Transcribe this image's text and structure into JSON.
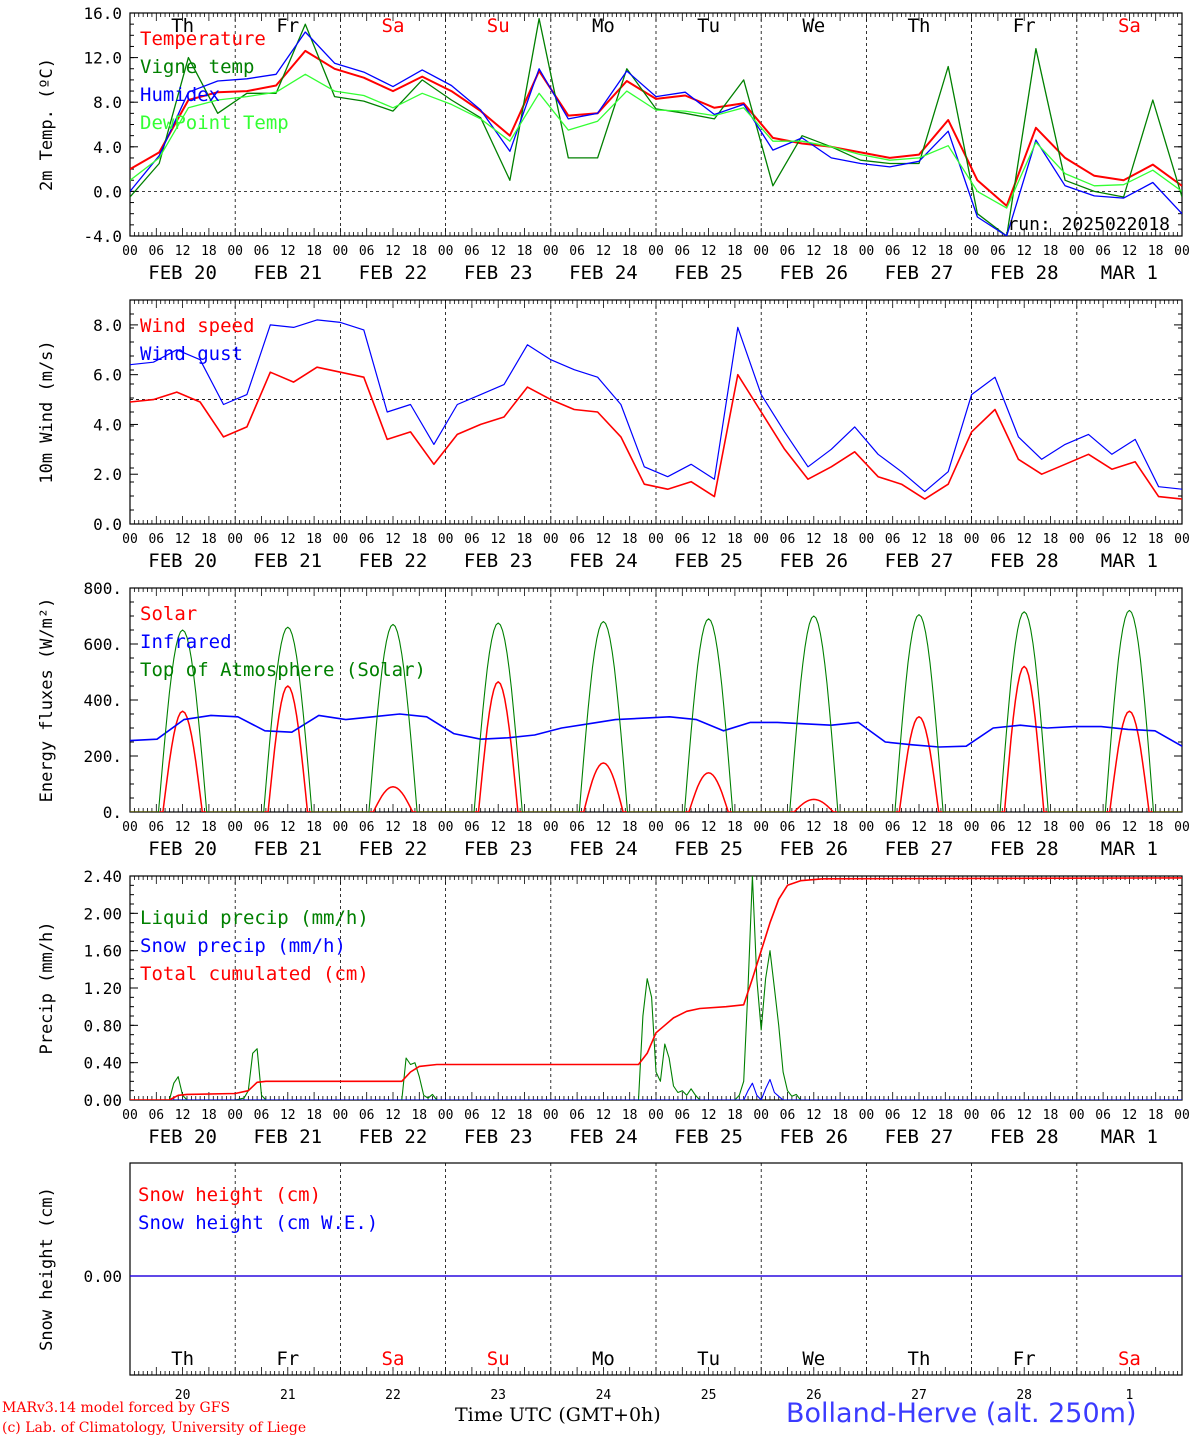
{
  "footer": {
    "credit_line1": "MARv3.14 model forced by GFS",
    "credit_line2": "(c) Lab. of Climatology, University of Liege",
    "x_title": "Time UTC (GMT+0h)",
    "station": "Bolland-Herve (alt. 250m)"
  },
  "colors": {
    "red": "#ff0000",
    "green": "#008000",
    "blue": "#0000ff",
    "lightgreen": "#33ff33",
    "axis": "#000000"
  },
  "chart_data": [
    {
      "type": "line",
      "title": "",
      "ylabel": "2m Temp. (ºC)",
      "ylim": [
        -4,
        16
      ],
      "yticks": [
        "-4.0",
        "0.0",
        "4.0",
        "8.0",
        "12.0",
        "16.0"
      ],
      "reference_line": 0,
      "annotation": "run: 2025022018",
      "day_labels": [
        {
          "text": "Th",
          "color": "#000000"
        },
        {
          "text": "Fr",
          "color": "#000000"
        },
        {
          "text": "Sa",
          "color": "#ff0000"
        },
        {
          "text": "Su",
          "color": "#ff0000"
        },
        {
          "text": "Mo",
          "color": "#000000"
        },
        {
          "text": "Tu",
          "color": "#000000"
        },
        {
          "text": "We",
          "color": "#000000"
        },
        {
          "text": "Th",
          "color": "#000000"
        },
        {
          "text": "Fr",
          "color": "#000000"
        },
        {
          "text": "Sa",
          "color": "#ff0000"
        }
      ],
      "x_hours": [
        0,
        6,
        12,
        18,
        24,
        30,
        36,
        42,
        48,
        54,
        60,
        66,
        72,
        78,
        84,
        90,
        96,
        102,
        108,
        114,
        120,
        126,
        132,
        138,
        144,
        150,
        156,
        162,
        168,
        174,
        180,
        186,
        192,
        198,
        204,
        210,
        216,
        222,
        228,
        234,
        240
      ],
      "series": [
        {
          "name": "Temperature",
          "color": "#ff0000",
          "width": 2,
          "values": [
            2.0,
            3.5,
            8.2,
            8.9,
            9.0,
            9.5,
            12.6,
            11.0,
            10.2,
            9.0,
            10.3,
            9.0,
            7.2,
            5.0,
            10.8,
            6.8,
            7.0,
            9.9,
            8.3,
            8.6,
            7.5,
            7.9,
            4.8,
            4.3,
            4.0,
            3.5,
            3.0,
            3.3,
            6.4,
            1.0,
            -1.3,
            5.7,
            3.0,
            1.4,
            1.0,
            2.4,
            0.5
          ]
        },
        {
          "name": "Vigne temp",
          "color": "#008000",
          "width": 1.3,
          "values": [
            -0.5,
            2.5,
            12.0,
            7.0,
            8.8,
            8.8,
            15.0,
            8.5,
            8.1,
            7.2,
            10.0,
            8.2,
            6.6,
            1.0,
            15.5,
            3.0,
            3.0,
            11.0,
            7.4,
            7.0,
            6.5,
            10.0,
            0.5,
            5.0,
            4.0,
            2.8,
            2.5,
            2.5,
            11.2,
            -2.0,
            -4.0,
            12.8,
            1.0,
            0.0,
            -0.5,
            8.2,
            -0.5
          ]
        },
        {
          "name": "Humidex",
          "color": "#0000ff",
          "width": 1.3,
          "values": [
            0.0,
            3.2,
            8.9,
            9.9,
            10.1,
            10.5,
            14.3,
            11.5,
            10.7,
            9.4,
            10.9,
            9.5,
            7.3,
            3.6,
            11.0,
            6.5,
            7.0,
            10.8,
            8.5,
            8.9,
            6.9,
            7.8,
            3.7,
            4.8,
            3.0,
            2.5,
            2.2,
            2.7,
            5.4,
            -2.3,
            -4.0,
            4.6,
            0.5,
            -0.4,
            -0.6,
            0.8,
            -2.0
          ]
        },
        {
          "name": "DewPoint Temp",
          "color": "#33ff33",
          "width": 1.3,
          "values": [
            1.0,
            3.0,
            7.5,
            8.2,
            8.5,
            8.9,
            10.5,
            9.0,
            8.6,
            7.5,
            8.8,
            7.8,
            6.5,
            4.5,
            8.8,
            5.5,
            6.3,
            9.0,
            7.3,
            7.2,
            6.8,
            7.5,
            4.5,
            4.5,
            4.0,
            3.3,
            2.8,
            3.0,
            4.1,
            0.0,
            -1.5,
            4.4,
            1.6,
            0.5,
            0.6,
            1.9,
            0.0
          ]
        }
      ],
      "x_end_hours": 240
    },
    {
      "type": "line",
      "title": "",
      "ylabel": "10m Wind (m/s)",
      "ylim": [
        0,
        9
      ],
      "yticks": [
        "0.0",
        "2.0",
        "4.0",
        "6.0",
        "8.0"
      ],
      "reference_line": 5,
      "series": [
        {
          "name": "Wind speed",
          "color": "#ff0000",
          "width": 1.6,
          "values": [
            4.9,
            5.0,
            5.3,
            4.9,
            3.5,
            3.9,
            6.1,
            5.7,
            6.3,
            6.1,
            5.9,
            3.4,
            3.7,
            2.4,
            3.6,
            4.0,
            4.3,
            5.5,
            5.0,
            4.6,
            4.5,
            3.5,
            1.6,
            1.4,
            1.7,
            1.1,
            6.0,
            4.5,
            3.0,
            1.8,
            2.3,
            2.9,
            1.9,
            1.6,
            1.0,
            1.6,
            3.7,
            4.6,
            2.6,
            2.0,
            2.4,
            2.8,
            2.2,
            2.5,
            1.1,
            1.0
          ]
        },
        {
          "name": "Wind gust",
          "color": "#0000ff",
          "width": 1.2,
          "values": [
            6.4,
            6.5,
            7.0,
            6.6,
            4.8,
            5.2,
            8.0,
            7.9,
            8.2,
            8.1,
            7.8,
            4.5,
            4.8,
            3.2,
            4.8,
            5.2,
            5.6,
            7.2,
            6.6,
            6.2,
            5.9,
            4.8,
            2.3,
            1.9,
            2.4,
            1.8,
            7.9,
            5.2,
            3.7,
            2.3,
            3.0,
            3.9,
            2.8,
            2.1,
            1.3,
            2.1,
            5.2,
            5.9,
            3.5,
            2.6,
            3.2,
            3.6,
            2.8,
            3.4,
            1.5,
            1.4
          ]
        }
      ],
      "x_end_hours": 240
    },
    {
      "type": "line",
      "title": "",
      "ylabel": "Energy fluxes (W/m²)",
      "ylim": [
        0,
        800
      ],
      "yticks": [
        "0.",
        "200.",
        "400.",
        "600.",
        "800."
      ],
      "series": [
        {
          "name": "Solar",
          "color": "#ff0000",
          "width": 1.5,
          "peaks": [
            360,
            450,
            90,
            465,
            175,
            140,
            45,
            340,
            520,
            360
          ]
        },
        {
          "name": "Infrared",
          "color": "#0000ff",
          "width": 1.6,
          "values": [
            255,
            260,
            330,
            345,
            340,
            290,
            285,
            345,
            330,
            340,
            350,
            340,
            280,
            260,
            265,
            275,
            300,
            315,
            330,
            335,
            340,
            330,
            290,
            320,
            320,
            315,
            310,
            320,
            250,
            240,
            232,
            235,
            300,
            310,
            300,
            305,
            305,
            295,
            290,
            235
          ]
        },
        {
          "name": "Top of Atmosphere (Solar)",
          "color": "#008000",
          "width": 1.1,
          "peaks": [
            650,
            660,
            670,
            675,
            680,
            690,
            700,
            705,
            715,
            720
          ]
        }
      ],
      "x_end_hours": 240
    },
    {
      "type": "line",
      "title": "",
      "ylabel": "Precip (mm/h)",
      "ylim": [
        0,
        2.4
      ],
      "yticks": [
        "0.00",
        "0.40",
        "0.80",
        "1.20",
        "1.60",
        "2.00",
        "2.40"
      ],
      "series": [
        {
          "name": "Liquid precip (mm/h)",
          "color": "#008000",
          "width": 1.1,
          "points": [
            [
              0,
              0
            ],
            [
              9,
              0
            ],
            [
              10,
              0.18
            ],
            [
              11,
              0.25
            ],
            [
              12,
              0.05
            ],
            [
              13,
              0
            ],
            [
              24,
              0
            ],
            [
              26,
              0.02
            ],
            [
              27,
              0.1
            ],
            [
              28,
              0.5
            ],
            [
              29,
              0.55
            ],
            [
              30,
              0.05
            ],
            [
              31,
              0
            ],
            [
              62,
              0
            ],
            [
              63,
              0.45
            ],
            [
              64,
              0.38
            ],
            [
              65,
              0.4
            ],
            [
              66,
              0.25
            ],
            [
              67,
              0.05
            ],
            [
              68,
              0.02
            ],
            [
              69,
              0.06
            ],
            [
              70,
              0
            ],
            [
              116,
              0
            ],
            [
              117,
              0.9
            ],
            [
              118,
              1.3
            ],
            [
              119,
              1.1
            ],
            [
              120,
              0.3
            ],
            [
              121,
              0.2
            ],
            [
              122,
              0.6
            ],
            [
              123,
              0.45
            ],
            [
              124,
              0.15
            ],
            [
              125,
              0.08
            ],
            [
              126,
              0.1
            ],
            [
              127,
              0.05
            ],
            [
              128,
              0.12
            ],
            [
              129,
              0.05
            ],
            [
              130,
              0
            ],
            [
              138,
              0
            ],
            [
              139,
              0.05
            ],
            [
              140,
              0.2
            ],
            [
              141,
              1.2
            ],
            [
              142,
              2.4
            ],
            [
              143,
              1.3
            ],
            [
              144,
              0.75
            ],
            [
              145,
              1.3
            ],
            [
              146,
              1.6
            ],
            [
              147,
              1.2
            ],
            [
              148,
              0.8
            ],
            [
              149,
              0.3
            ],
            [
              150,
              0.1
            ],
            [
              151,
              0.04
            ],
            [
              152,
              0.06
            ],
            [
              153,
              0
            ],
            [
              240,
              0
            ]
          ]
        },
        {
          "name": "Snow precip (mm/h)",
          "color": "#0000ff",
          "width": 1.1,
          "points": [
            [
              0,
              0
            ],
            [
              140,
              0
            ],
            [
              141,
              0.1
            ],
            [
              142,
              0.18
            ],
            [
              143,
              0.05
            ],
            [
              144,
              0
            ],
            [
              145,
              0.12
            ],
            [
              146,
              0.22
            ],
            [
              147,
              0.08
            ],
            [
              148,
              0.04
            ],
            [
              149,
              0
            ],
            [
              240,
              0
            ]
          ]
        },
        {
          "name": "Total cumulated (cm)",
          "color": "#ff0000",
          "width": 1.6,
          "points": [
            [
              0,
              0
            ],
            [
              9,
              0
            ],
            [
              11,
              0.05
            ],
            [
              13,
              0.06
            ],
            [
              24,
              0.07
            ],
            [
              27,
              0.1
            ],
            [
              29,
              0.19
            ],
            [
              31,
              0.2
            ],
            [
              62,
              0.2
            ],
            [
              64,
              0.3
            ],
            [
              66,
              0.36
            ],
            [
              70,
              0.38
            ],
            [
              116,
              0.38
            ],
            [
              118,
              0.5
            ],
            [
              120,
              0.72
            ],
            [
              122,
              0.8
            ],
            [
              124,
              0.88
            ],
            [
              127,
              0.95
            ],
            [
              130,
              0.98
            ],
            [
              136,
              1.0
            ],
            [
              140,
              1.02
            ],
            [
              142,
              1.3
            ],
            [
              144,
              1.6
            ],
            [
              146,
              1.9
            ],
            [
              148,
              2.15
            ],
            [
              150,
              2.3
            ],
            [
              153,
              2.35
            ],
            [
              158,
              2.37
            ],
            [
              240,
              2.38
            ]
          ]
        }
      ],
      "x_end_hours": 240
    },
    {
      "type": "line",
      "title": "",
      "ylabel": "Snow height (cm)",
      "yticks": [
        "0.00"
      ],
      "series": [
        {
          "name": "Snow height (cm)",
          "color": "#ff0000",
          "width": 1.3,
          "values": [
            0,
            0
          ]
        },
        {
          "name": "Snow height (cm W.E.)",
          "color": "#0000ff",
          "width": 1.3,
          "values": [
            0,
            0
          ]
        }
      ],
      "bottom_day_labels": [
        {
          "text": "Th",
          "color": "#000000"
        },
        {
          "text": "Fr",
          "color": "#000000"
        },
        {
          "text": "Sa",
          "color": "#ff0000"
        },
        {
          "text": "Su",
          "color": "#ff0000"
        },
        {
          "text": "Mo",
          "color": "#000000"
        },
        {
          "text": "Tu",
          "color": "#000000"
        },
        {
          "text": "We",
          "color": "#000000"
        },
        {
          "text": "Th",
          "color": "#000000"
        },
        {
          "text": "Fr",
          "color": "#000000"
        },
        {
          "text": "Sa",
          "color": "#ff0000"
        }
      ],
      "date_numbers": [
        "20",
        "21",
        "22",
        "23",
        "24",
        "25",
        "26",
        "27",
        "28",
        "1"
      ],
      "x_end_hours": 240
    }
  ],
  "x_axis": {
    "hour_labels": [
      "00",
      "06",
      "12",
      "18"
    ],
    "final_hour_label": "00",
    "date_labels": [
      "FEB 20",
      "FEB 21",
      "FEB 22",
      "FEB 23",
      "FEB 24",
      "FEB 25",
      "FEB 26",
      "FEB 27",
      "FEB 28",
      "MAR  1"
    ]
  }
}
